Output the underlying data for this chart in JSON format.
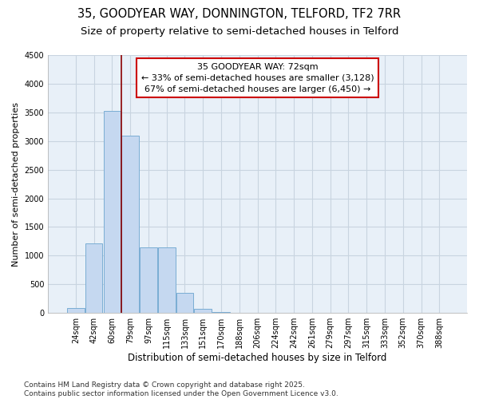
{
  "title": "35, GOODYEAR WAY, DONNINGTON, TELFORD, TF2 7RR",
  "subtitle": "Size of property relative to semi-detached houses in Telford",
  "xlabel": "Distribution of semi-detached houses by size in Telford",
  "ylabel": "Number of semi-detached properties",
  "categories": [
    "24sqm",
    "42sqm",
    "60sqm",
    "79sqm",
    "97sqm",
    "115sqm",
    "133sqm",
    "151sqm",
    "170sqm",
    "188sqm",
    "206sqm",
    "224sqm",
    "242sqm",
    "261sqm",
    "279sqm",
    "297sqm",
    "315sqm",
    "333sqm",
    "352sqm",
    "370sqm",
    "388sqm"
  ],
  "values": [
    80,
    1220,
    3520,
    3100,
    1150,
    1150,
    350,
    75,
    10,
    0,
    0,
    0,
    0,
    0,
    0,
    0,
    0,
    0,
    0,
    0,
    0
  ],
  "bar_color": "#c5d8f0",
  "bar_edge_color": "#7aadd4",
  "annotation_line1": "35 GOODYEAR WAY: 72sqm",
  "annotation_line2": "← 33% of semi-detached houses are smaller (3,128)",
  "annotation_line3": "67% of semi-detached houses are larger (6,450) →",
  "vline_x_index": 2.5,
  "vline_color": "#8b0000",
  "box_color": "#cc0000",
  "ylim": [
    0,
    4500
  ],
  "yticks": [
    0,
    500,
    1000,
    1500,
    2000,
    2500,
    3000,
    3500,
    4000,
    4500
  ],
  "footnote": "Contains HM Land Registry data © Crown copyright and database right 2025.\nContains public sector information licensed under the Open Government Licence v3.0.",
  "title_fontsize": 10.5,
  "subtitle_fontsize": 9.5,
  "xlabel_fontsize": 8.5,
  "ylabel_fontsize": 8,
  "tick_fontsize": 7,
  "annotation_fontsize": 8,
  "footnote_fontsize": 6.5,
  "background_color": "#e8f0f8"
}
